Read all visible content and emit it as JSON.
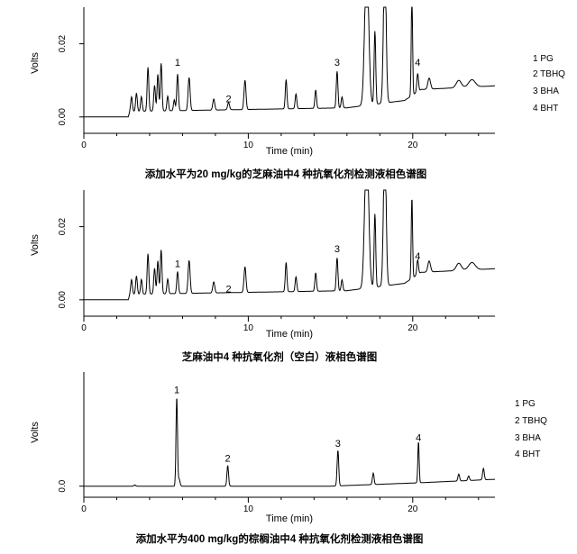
{
  "chart_data": [
    {
      "type": "line",
      "title": "添加水平为20 mg/kg的芝麻油中4 种抗氧化剂检测液相色谱图",
      "xlabel": "Time (min)",
      "ylabel": "Volts",
      "xlim": [
        0,
        25
      ],
      "ylim": [
        -0.003,
        0.03
      ],
      "x_ticks": [
        0,
        10,
        20
      ],
      "y_ticks": [
        {
          "value": 0.0,
          "label": "0.00"
        },
        {
          "value": 0.02,
          "label": "0.02"
        }
      ],
      "legend": [
        "1 PG",
        "2 TBHQ",
        "3 BHA",
        "4 BHT"
      ],
      "legend_position": "right",
      "baseline": 0.0,
      "drift": [
        [
          0,
          0.0
        ],
        [
          2.7,
          0.0
        ],
        [
          2.8,
          0.0015
        ],
        [
          16.0,
          0.0025
        ],
        [
          19.5,
          0.0045
        ],
        [
          20.5,
          0.0075
        ],
        [
          25,
          0.0085
        ]
      ],
      "peaks": [
        {
          "t": 2.9,
          "h": 0.004,
          "w": 0.05
        },
        {
          "t": 3.2,
          "h": 0.005,
          "w": 0.05
        },
        {
          "t": 3.5,
          "h": 0.004,
          "w": 0.05
        },
        {
          "t": 3.9,
          "h": 0.012,
          "w": 0.05
        },
        {
          "t": 4.3,
          "h": 0.007,
          "w": 0.05
        },
        {
          "t": 4.5,
          "h": 0.01,
          "w": 0.05
        },
        {
          "t": 4.7,
          "h": 0.013,
          "w": 0.05
        },
        {
          "t": 5.1,
          "h": 0.004,
          "w": 0.05
        },
        {
          "t": 5.5,
          "h": 0.003,
          "w": 0.05
        },
        {
          "t": 5.7,
          "h": 0.01,
          "w": 0.05
        },
        {
          "t": 6.4,
          "h": 0.009,
          "w": 0.06
        },
        {
          "t": 7.9,
          "h": 0.003,
          "w": 0.06
        },
        {
          "t": 8.8,
          "h": 0.002,
          "w": 0.06
        },
        {
          "t": 9.8,
          "h": 0.008,
          "w": 0.06
        },
        {
          "t": 12.3,
          "h": 0.008,
          "w": 0.05
        },
        {
          "t": 12.9,
          "h": 0.004,
          "w": 0.05
        },
        {
          "t": 14.1,
          "h": 0.005,
          "w": 0.05
        },
        {
          "t": 15.4,
          "h": 0.01,
          "w": 0.05
        },
        {
          "t": 15.7,
          "h": 0.003,
          "w": 0.05
        },
        {
          "t": 17.2,
          "h": 0.04,
          "w": 0.12
        },
        {
          "t": 17.7,
          "h": 0.02,
          "w": 0.05
        },
        {
          "t": 18.3,
          "h": 0.04,
          "w": 0.08
        },
        {
          "t": 19.95,
          "h": 0.028,
          "w": 0.04
        },
        {
          "t": 20.3,
          "h": 0.005,
          "w": 0.05
        },
        {
          "t": 21.0,
          "h": 0.003,
          "w": 0.08
        },
        {
          "t": 22.8,
          "h": 0.002,
          "w": 0.15
        },
        {
          "t": 23.6,
          "h": 0.002,
          "w": 0.2
        }
      ],
      "peak_labels": [
        {
          "label": "1",
          "x": 5.7,
          "y": 0.0135
        },
        {
          "label": "2",
          "x": 8.8,
          "y": 0.0035
        },
        {
          "label": "3",
          "x": 15.4,
          "y": 0.0135
        },
        {
          "label": "4",
          "x": 20.3,
          "y": 0.0135
        }
      ]
    },
    {
      "type": "line",
      "title": "芝麻油中4 种抗氧化剂（空白）液相色谱图",
      "xlabel": "Time (min)",
      "ylabel": "Volts",
      "xlim": [
        0,
        25
      ],
      "ylim": [
        -0.003,
        0.03
      ],
      "x_ticks": [
        0,
        10,
        20
      ],
      "y_ticks": [
        {
          "value": 0.0,
          "label": "0.00"
        },
        {
          "value": 0.02,
          "label": "0.02"
        }
      ],
      "legend": [],
      "baseline": 0.0,
      "drift": [
        [
          0,
          0.0
        ],
        [
          2.7,
          0.0
        ],
        [
          2.8,
          0.0015
        ],
        [
          16.0,
          0.0025
        ],
        [
          19.5,
          0.0045
        ],
        [
          20.5,
          0.0075
        ],
        [
          25,
          0.0085
        ]
      ],
      "peaks": [
        {
          "t": 2.9,
          "h": 0.004,
          "w": 0.05
        },
        {
          "t": 3.2,
          "h": 0.005,
          "w": 0.05
        },
        {
          "t": 3.5,
          "h": 0.004,
          "w": 0.05
        },
        {
          "t": 3.9,
          "h": 0.011,
          "w": 0.05
        },
        {
          "t": 4.3,
          "h": 0.007,
          "w": 0.05
        },
        {
          "t": 4.5,
          "h": 0.009,
          "w": 0.05
        },
        {
          "t": 4.7,
          "h": 0.012,
          "w": 0.05
        },
        {
          "t": 5.1,
          "h": 0.004,
          "w": 0.05
        },
        {
          "t": 5.7,
          "h": 0.006,
          "w": 0.05
        },
        {
          "t": 6.4,
          "h": 0.009,
          "w": 0.06
        },
        {
          "t": 7.9,
          "h": 0.003,
          "w": 0.06
        },
        {
          "t": 9.8,
          "h": 0.007,
          "w": 0.06
        },
        {
          "t": 12.3,
          "h": 0.008,
          "w": 0.05
        },
        {
          "t": 12.9,
          "h": 0.004,
          "w": 0.05
        },
        {
          "t": 14.1,
          "h": 0.005,
          "w": 0.05
        },
        {
          "t": 15.4,
          "h": 0.009,
          "w": 0.05
        },
        {
          "t": 15.7,
          "h": 0.003,
          "w": 0.05
        },
        {
          "t": 17.2,
          "h": 0.04,
          "w": 0.12
        },
        {
          "t": 17.7,
          "h": 0.02,
          "w": 0.05
        },
        {
          "t": 18.3,
          "h": 0.04,
          "w": 0.08
        },
        {
          "t": 19.95,
          "h": 0.022,
          "w": 0.04
        },
        {
          "t": 20.3,
          "h": 0.004,
          "w": 0.05
        },
        {
          "t": 21.0,
          "h": 0.003,
          "w": 0.08
        },
        {
          "t": 22.8,
          "h": 0.002,
          "w": 0.15
        },
        {
          "t": 23.6,
          "h": 0.002,
          "w": 0.2
        }
      ],
      "peak_labels": [
        {
          "label": "1",
          "x": 5.7,
          "y": 0.0085
        },
        {
          "label": "2",
          "x": 8.8,
          "y": 0.0015
        },
        {
          "label": "3",
          "x": 15.4,
          "y": 0.0125
        },
        {
          "label": "4",
          "x": 20.3,
          "y": 0.0105
        }
      ]
    },
    {
      "type": "line",
      "title": "添加水平为400 mg/kg的棕榈油中4 种抗氧化剂检测液相色谱图",
      "xlabel": "Time (min)",
      "ylabel": "Volts",
      "xlim": [
        0,
        25
      ],
      "ylim": [
        -0.05,
        1.0
      ],
      "x_ticks": [
        0,
        10,
        20
      ],
      "y_ticks": [
        {
          "value": 0.0,
          "label": "0.0"
        }
      ],
      "legend": [
        "1 PG",
        "2 TBHQ",
        "3 BHA",
        "4 BHT"
      ],
      "legend_position": "right",
      "baseline": 0.0,
      "drift": [
        [
          0,
          0.0
        ],
        [
          15.0,
          0.0
        ],
        [
          20.5,
          0.03
        ],
        [
          25,
          0.06
        ]
      ],
      "peaks": [
        {
          "t": 3.1,
          "h": 0.01,
          "w": 0.05
        },
        {
          "t": 5.65,
          "h": 0.78,
          "w": 0.045
        },
        {
          "t": 5.8,
          "h": 0.06,
          "w": 0.05
        },
        {
          "t": 8.75,
          "h": 0.18,
          "w": 0.05
        },
        {
          "t": 15.45,
          "h": 0.31,
          "w": 0.05
        },
        {
          "t": 17.6,
          "h": 0.1,
          "w": 0.05
        },
        {
          "t": 20.35,
          "h": 0.36,
          "w": 0.04
        },
        {
          "t": 22.8,
          "h": 0.06,
          "w": 0.05
        },
        {
          "t": 23.4,
          "h": 0.04,
          "w": 0.05
        },
        {
          "t": 24.3,
          "h": 0.1,
          "w": 0.05
        }
      ],
      "peak_labels": [
        {
          "label": "1",
          "x": 5.65,
          "y": 0.8
        },
        {
          "label": "2",
          "x": 8.75,
          "y": 0.2
        },
        {
          "label": "3",
          "x": 15.45,
          "y": 0.33
        },
        {
          "label": "4",
          "x": 20.35,
          "y": 0.38
        }
      ]
    }
  ]
}
